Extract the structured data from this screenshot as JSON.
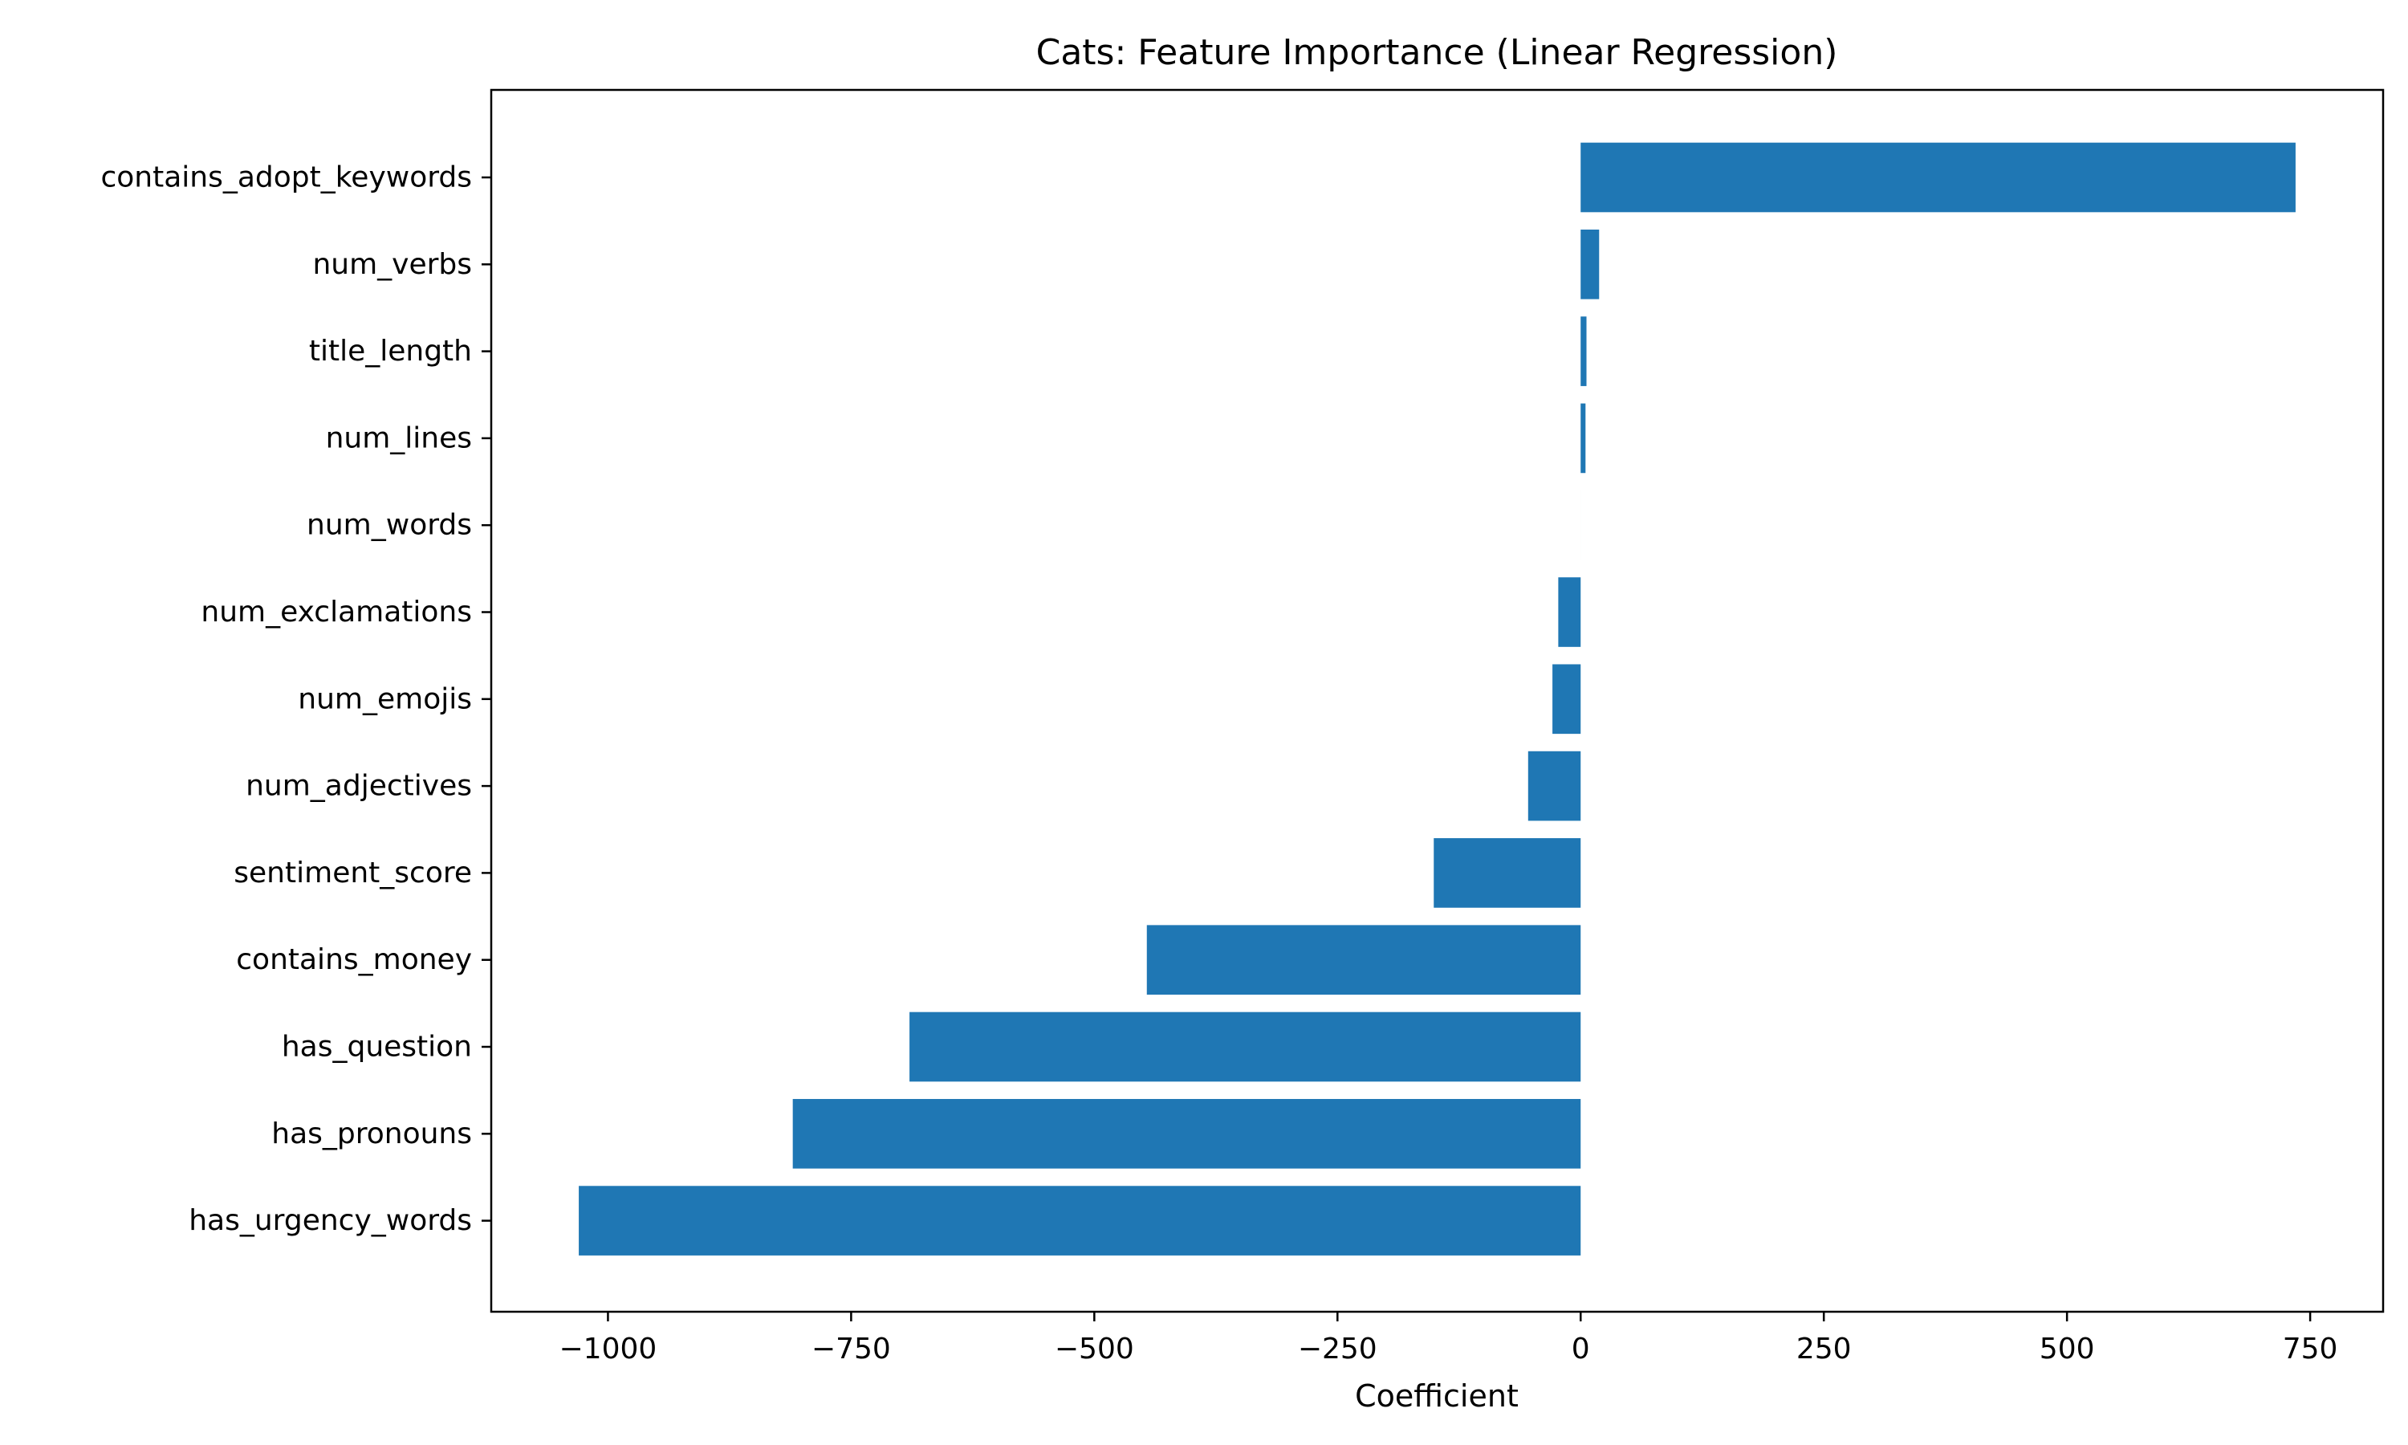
{
  "chart_data": {
    "type": "bar",
    "orientation": "horizontal",
    "title": "Cats: Feature Importance (Linear Regression)",
    "xlabel": "Coefficient",
    "ylabel": "",
    "categories": [
      "contains_adopt_keywords",
      "num_verbs",
      "title_length",
      "num_lines",
      "num_words",
      "num_exclamations",
      "num_emojis",
      "num_adjectives",
      "sentiment_score",
      "contains_money",
      "has_question",
      "has_pronouns",
      "has_urgency_words"
    ],
    "values": [
      735,
      19,
      6,
      5,
      0,
      -23,
      -29,
      -54,
      -151,
      -446,
      -690,
      -810,
      -1030
    ],
    "xlim": [
      -1120,
      825
    ],
    "xticks": [
      -1000,
      -750,
      -500,
      -250,
      0,
      250,
      500,
      750
    ],
    "xtick_labels": [
      "−1000",
      "−750",
      "−500",
      "−250",
      "0",
      "250",
      "500",
      "750"
    ],
    "bar_color": "#1f77b4",
    "grid": false,
    "legend": "none"
  }
}
